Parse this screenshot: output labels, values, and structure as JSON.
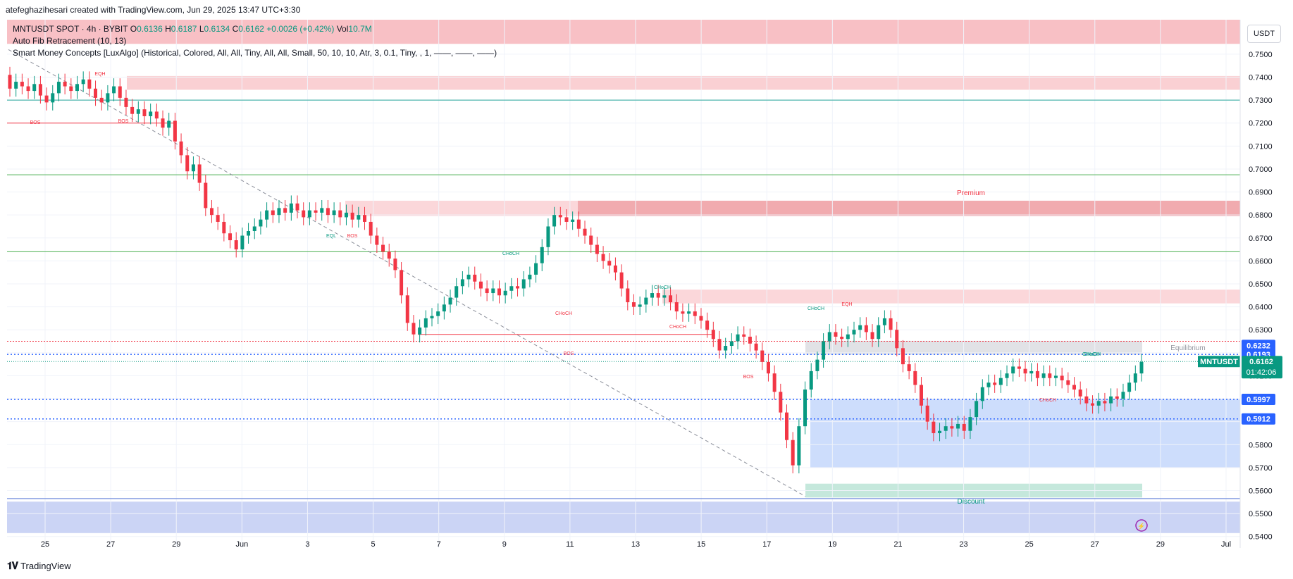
{
  "header": {
    "created_by": "atefeghazihesari created with TradingView.com, Jun 29, 2025 13:47 UTC+3:30"
  },
  "legend": {
    "symbol_line": "MNTUSDT SPOT · 4h · BYBIT",
    "o_label": "O",
    "o_value": "0.6136",
    "h_label": "H",
    "h_value": "0.6187",
    "l_label": "L",
    "l_value": "0.6134",
    "c_label": "C",
    "c_value": "0.6162",
    "change": "+0.0026 (+0.42%)",
    "vol_label": "Vol",
    "vol_value": "10.7M",
    "indicator1": "Auto Fib Retracement (10, 13)",
    "indicator2": "Smart Money Concepts [LuxAlgo] (Historical, Colored, All, All, Tiny, All, All, Small, 50, 10, 10, Atr, 3, 0.1, Tiny, , 1, ——, ——, ——)"
  },
  "currency_button": "USDT",
  "footer": {
    "brand": "TradingView"
  },
  "colors": {
    "up": "#089981",
    "down": "#f23645",
    "premium_zone": "#f7b5bb",
    "discount_zone": "#a9b7ef",
    "blue_zone": "#bcd2fb",
    "fib_green": "#4caf50",
    "fib_teal": "#26a69a",
    "fib_red": "#f23645",
    "dotted_blue": "#2962ff",
    "grid": "#f0f3fa"
  },
  "chart_data": {
    "type": "candlestick",
    "ylim": [
      0.535,
      0.765
    ],
    "y_ticks": [
      "0.7500",
      "0.7400",
      "0.7300",
      "0.7200",
      "0.7100",
      "0.7000",
      "0.6900",
      "0.6800",
      "0.6700",
      "0.6600",
      "0.6500",
      "0.6400",
      "0.6300",
      "0.6200",
      "0.6100",
      "0.6000",
      "0.5900",
      "0.5800",
      "0.5700",
      "0.5600",
      "0.5500",
      "0.5400"
    ],
    "x_ticks": [
      "25",
      "27",
      "29",
      "Jun",
      "3",
      "5",
      "7",
      "9",
      "11",
      "13",
      "15",
      "17",
      "19",
      "21",
      "23",
      "25",
      "27",
      "29",
      "Jul"
    ],
    "price_labels": [
      {
        "text": "0.6232",
        "value": 0.6232,
        "color": "#2962ff"
      },
      {
        "text": "0.6193",
        "value": 0.6193,
        "color": "#2962ff"
      },
      {
        "text": "0.5997",
        "value": 0.5997,
        "color": "#2962ff"
      },
      {
        "text": "0.5912",
        "value": 0.5912,
        "color": "#2962ff"
      }
    ],
    "current": {
      "symbol": "MNTUSDT",
      "price": "0.6162",
      "countdown": "01:42:06",
      "value": 0.6162
    },
    "annotations": [
      "EQH",
      "BOS",
      "BOS",
      "EQL",
      "BOS",
      "CHoCH",
      "CHoCH",
      "CHoCH",
      "CHoCH",
      "CHoCH",
      "BOS",
      "EQH",
      "CHoCH",
      "CHoCH",
      "CHoCH",
      "BOS",
      "Premium",
      "Equilibrium",
      "Discount"
    ],
    "close_series": [
      0.735,
      0.738,
      0.736,
      0.734,
      0.737,
      0.732,
      0.729,
      0.733,
      0.738,
      0.736,
      0.734,
      0.737,
      0.739,
      0.735,
      0.731,
      0.729,
      0.733,
      0.736,
      0.731,
      0.727,
      0.724,
      0.726,
      0.723,
      0.725,
      0.722,
      0.718,
      0.721,
      0.712,
      0.706,
      0.699,
      0.702,
      0.694,
      0.683,
      0.68,
      0.677,
      0.672,
      0.669,
      0.665,
      0.671,
      0.673,
      0.675,
      0.678,
      0.682,
      0.68,
      0.683,
      0.681,
      0.685,
      0.682,
      0.679,
      0.682,
      0.681,
      0.683,
      0.68,
      0.682,
      0.679,
      0.681,
      0.678,
      0.68,
      0.677,
      0.671,
      0.667,
      0.664,
      0.661,
      0.656,
      0.645,
      0.633,
      0.628,
      0.631,
      0.635,
      0.636,
      0.638,
      0.641,
      0.644,
      0.649,
      0.652,
      0.654,
      0.651,
      0.648,
      0.646,
      0.648,
      0.645,
      0.647,
      0.649,
      0.648,
      0.652,
      0.654,
      0.659,
      0.666,
      0.675,
      0.68,
      0.679,
      0.677,
      0.678,
      0.674,
      0.671,
      0.667,
      0.663,
      0.66,
      0.658,
      0.655,
      0.648,
      0.642,
      0.64,
      0.641,
      0.644,
      0.646,
      0.644,
      0.645,
      0.642,
      0.638,
      0.637,
      0.638,
      0.636,
      0.634,
      0.63,
      0.626,
      0.621,
      0.623,
      0.625,
      0.628,
      0.627,
      0.624,
      0.621,
      0.616,
      0.611,
      0.603,
      0.594,
      0.582,
      0.571,
      0.588,
      0.604,
      0.612,
      0.617,
      0.625,
      0.629,
      0.627,
      0.626,
      0.628,
      0.63,
      0.632,
      0.629,
      0.626,
      0.632,
      0.635,
      0.63,
      0.622,
      0.615,
      0.612,
      0.606,
      0.597,
      0.59,
      0.585,
      0.586,
      0.588,
      0.587,
      0.589,
      0.586,
      0.592,
      0.599,
      0.605,
      0.607,
      0.606,
      0.609,
      0.611,
      0.614,
      0.613,
      0.611,
      0.612,
      0.609,
      0.611,
      0.609,
      0.61,
      0.608,
      0.606,
      0.604,
      0.601,
      0.598,
      0.597,
      0.599,
      0.598,
      0.601,
      0.6,
      0.603,
      0.607,
      0.611,
      0.616
    ]
  }
}
